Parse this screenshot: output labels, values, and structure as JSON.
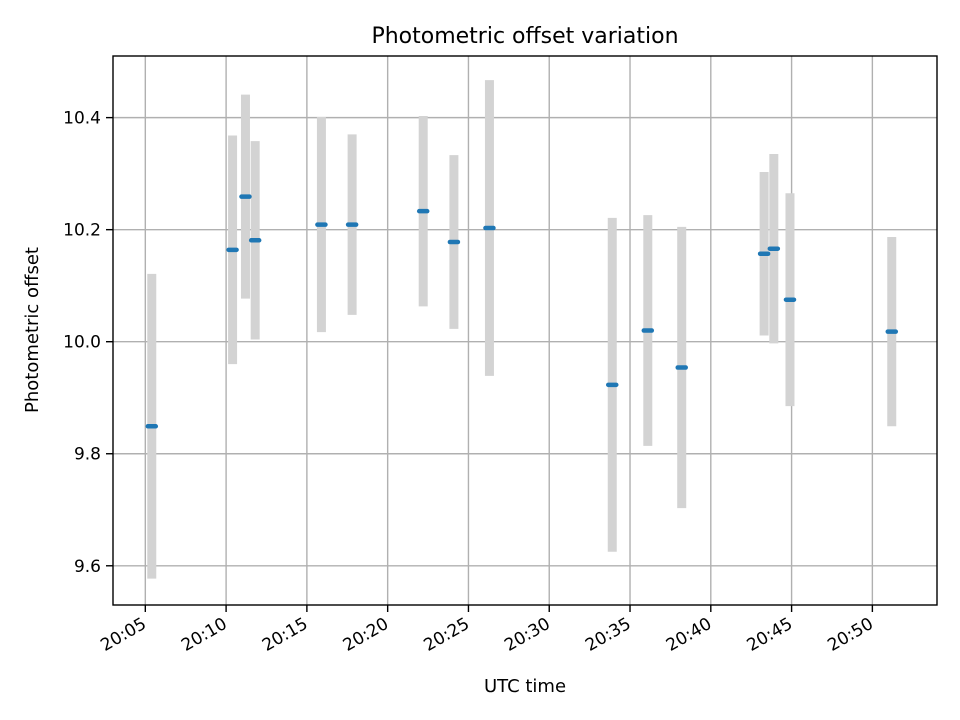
{
  "chart_data": {
    "type": "scatter",
    "title": "Photometric offset variation",
    "xlabel": "UTC time",
    "ylabel": "Photometric offset",
    "xlim": [
      "20:03",
      "20:54"
    ],
    "ylim": [
      9.53,
      10.51
    ],
    "grid": true,
    "x_ticks": [
      "20:05",
      "20:10",
      "20:15",
      "20:20",
      "20:25",
      "20:30",
      "20:35",
      "20:40",
      "20:45",
      "20:50"
    ],
    "y_ticks": [
      "9.6",
      "9.8",
      "10.0",
      "10.2",
      "10.4"
    ],
    "colors": {
      "point": "#1f77b4",
      "errorbar": "#d3d3d3"
    },
    "series": [
      {
        "points": [
          {
            "x": "20:05:24",
            "y": 9.849,
            "err": 0.272
          },
          {
            "x": "20:10:24",
            "y": 10.164,
            "err": 0.204
          },
          {
            "x": "20:11:12",
            "y": 10.259,
            "err": 0.182
          },
          {
            "x": "20:11:48",
            "y": 10.181,
            "err": 0.177
          },
          {
            "x": "20:15:54",
            "y": 10.209,
            "err": 0.192
          },
          {
            "x": "20:17:48",
            "y": 10.209,
            "err": 0.161
          },
          {
            "x": "20:22:12",
            "y": 10.233,
            "err": 0.17
          },
          {
            "x": "20:24:06",
            "y": 10.178,
            "err": 0.155
          },
          {
            "x": "20:26:18",
            "y": 10.203,
            "err": 0.264
          },
          {
            "x": "20:33:54",
            "y": 9.923,
            "err": 0.298
          },
          {
            "x": "20:36:06",
            "y": 10.02,
            "err": 0.206
          },
          {
            "x": "20:38:12",
            "y": 9.954,
            "err": 0.251
          },
          {
            "x": "20:43:18",
            "y": 10.157,
            "err": 0.146
          },
          {
            "x": "20:43:54",
            "y": 10.166,
            "err": 0.169
          },
          {
            "x": "20:44:54",
            "y": 10.075,
            "err": 0.19
          },
          {
            "x": "20:51:12",
            "y": 10.018,
            "err": 0.169
          }
        ]
      }
    ]
  }
}
